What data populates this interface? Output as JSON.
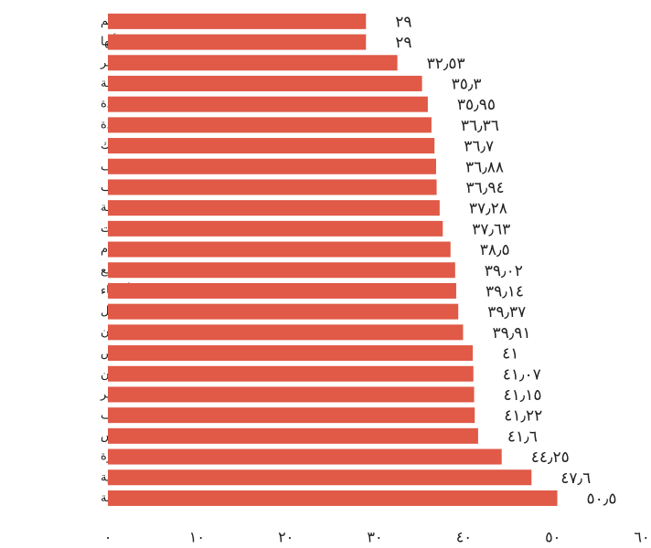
{
  "chart_data": {
    "type": "bar",
    "orientation": "horizontal",
    "color": "#e05a47",
    "categories": [
      "القصيم",
      "أبها",
      "الخبر",
      "بيشة",
      "جدة",
      "بريدة",
      "تبوك",
      "الجوف",
      "الطائف",
      "مكة المكرمة",
      "سيهات",
      "الدمام",
      "ينبع",
      "الأحساء",
      "حائل",
      "جازان",
      "الرياض",
      "حفر الباطن",
      "عسير",
      "القطيف",
      "الرس",
      "عنيزة",
      "البكيرية",
      "المدينة"
    ],
    "values": [
      29,
      29,
      32.53,
      35.3,
      35.95,
      36.36,
      36.7,
      36.88,
      36.94,
      37.28,
      37.63,
      38.5,
      39.02,
      39.14,
      39.37,
      39.91,
      41,
      41.07,
      41.15,
      41.22,
      41.6,
      44.25,
      47.6,
      50.5
    ],
    "value_labels": [
      "٢٩",
      "٢٩",
      "٣٢٫٥٣",
      "٣٥٫٣",
      "٣٥٫٩٥",
      "٣٦٫٣٦",
      "٣٦٫٧",
      "٣٦٫٨٨",
      "٣٦٫٩٤",
      "٣٧٫٢٨",
      "٣٧٫٦٣",
      "٣٨٫٥",
      "٣٩٫٠٢",
      "٣٩٫١٤",
      "٣٩٫٣٧",
      "٣٩٫٩١",
      "٤١",
      "٤١٫٠٧",
      "٤١٫١٥",
      "٤١٫٢٢",
      "٤١٫٦",
      "٤٤٫٢٥",
      "٤٧٫٦",
      "٥٠٫٥"
    ],
    "xlim": [
      0,
      60
    ],
    "xticks": [
      {
        "value": 0,
        "label": "٠"
      },
      {
        "value": 10,
        "label": "١٠"
      },
      {
        "value": 20,
        "label": "٢٠"
      },
      {
        "value": 30,
        "label": "٣٠"
      },
      {
        "value": 40,
        "label": "٤٠"
      },
      {
        "value": 50,
        "label": "٥٠"
      },
      {
        "value": 60,
        "label": "٦٠"
      }
    ],
    "grid": false
  }
}
